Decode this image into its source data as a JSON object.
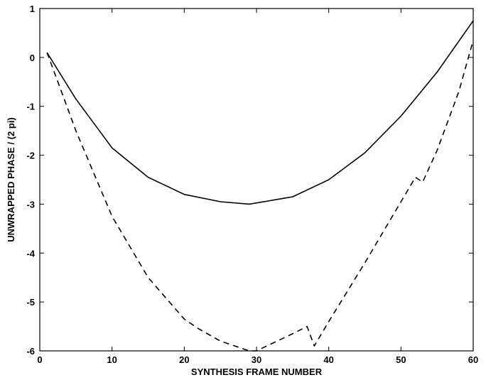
{
  "chart_data": {
    "type": "line",
    "title": "",
    "xlabel": "SYNTHESIS FRAME NUMBER",
    "ylabel": "UNWRAPPED PHASE / (2 pi)",
    "xlim": [
      0,
      60
    ],
    "ylim": [
      -6,
      1
    ],
    "xticks": [
      "0",
      "10",
      "20",
      "30",
      "40",
      "50",
      "60"
    ],
    "yticks": [
      "1",
      "0",
      "-1",
      "-2",
      "-3",
      "-4",
      "-5",
      "-6"
    ],
    "grid": false,
    "legend": "none",
    "series": [
      {
        "style": "solid",
        "color": "#000000",
        "x": [
          1,
          5,
          10,
          15,
          20,
          25,
          29,
          35,
          40,
          45,
          50,
          55,
          60
        ],
        "y": [
          0.1,
          -0.85,
          -1.85,
          -2.45,
          -2.8,
          -2.95,
          -3.0,
          -2.85,
          -2.5,
          -1.95,
          -1.2,
          -0.3,
          0.75
        ]
      },
      {
        "style": "dashed",
        "color": "#000000",
        "x": [
          1,
          5,
          10,
          15,
          20,
          22,
          25,
          29,
          30,
          35,
          37,
          38,
          40,
          45,
          50,
          52,
          53,
          55,
          58,
          60
        ],
        "y": [
          0.1,
          -1.5,
          -3.25,
          -4.5,
          -5.35,
          -5.55,
          -5.8,
          -6.0,
          -6.0,
          -5.65,
          -5.5,
          -5.9,
          -5.4,
          -4.2,
          -2.95,
          -2.45,
          -2.55,
          -1.9,
          -0.7,
          0.35
        ]
      }
    ]
  }
}
